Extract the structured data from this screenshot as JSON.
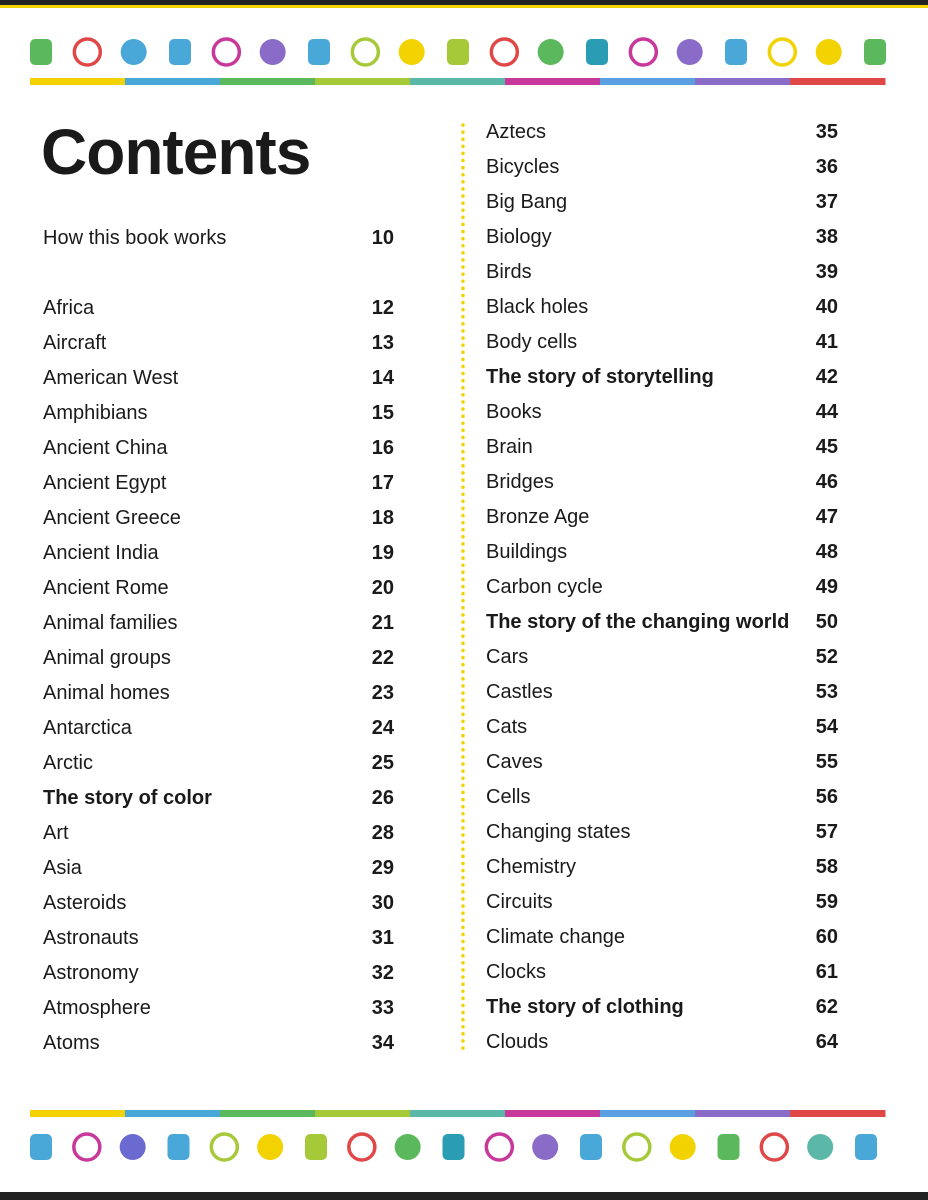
{
  "title": "Contents",
  "intro": {
    "text": "How this book works",
    "page": 10
  },
  "left": [
    {
      "text": "Africa",
      "page": 12
    },
    {
      "text": "Aircraft",
      "page": 13
    },
    {
      "text": "American West",
      "page": 14
    },
    {
      "text": "Amphibians",
      "page": 15
    },
    {
      "text": "Ancient China",
      "page": 16
    },
    {
      "text": "Ancient Egypt",
      "page": 17
    },
    {
      "text": "Ancient Greece",
      "page": 18
    },
    {
      "text": "Ancient India",
      "page": 19
    },
    {
      "text": "Ancient Rome",
      "page": 20
    },
    {
      "text": "Animal families",
      "page": 21
    },
    {
      "text": "Animal groups",
      "page": 22
    },
    {
      "text": "Animal homes",
      "page": 23
    },
    {
      "text": "Antarctica",
      "page": 24
    },
    {
      "text": "Arctic",
      "page": 25
    },
    {
      "text": "The story of color",
      "page": 26,
      "bold": true
    },
    {
      "text": "Art",
      "page": 28
    },
    {
      "text": "Asia",
      "page": 29
    },
    {
      "text": "Asteroids",
      "page": 30
    },
    {
      "text": "Astronauts",
      "page": 31
    },
    {
      "text": "Astronomy",
      "page": 32
    },
    {
      "text": "Atmosphere",
      "page": 33
    },
    {
      "text": "Atoms",
      "page": 34
    }
  ],
  "right": [
    {
      "text": "Aztecs",
      "page": 35
    },
    {
      "text": "Bicycles",
      "page": 36
    },
    {
      "text": "Big Bang",
      "page": 37
    },
    {
      "text": "Biology",
      "page": 38
    },
    {
      "text": "Birds",
      "page": 39
    },
    {
      "text": "Black holes",
      "page": 40
    },
    {
      "text": "Body cells",
      "page": 41
    },
    {
      "text": "The story of storytelling",
      "page": 42,
      "bold": true
    },
    {
      "text": "Books",
      "page": 44
    },
    {
      "text": "Brain",
      "page": 45
    },
    {
      "text": "Bridges",
      "page": 46
    },
    {
      "text": "Bronze Age",
      "page": 47
    },
    {
      "text": "Buildings",
      "page": 48
    },
    {
      "text": "Carbon cycle",
      "page": 49
    },
    {
      "text": "The story of the changing world",
      "page": 50,
      "bold": true
    },
    {
      "text": "Cars",
      "page": 52
    },
    {
      "text": "Castles",
      "page": 53
    },
    {
      "text": "Cats",
      "page": 54
    },
    {
      "text": "Caves",
      "page": 55
    },
    {
      "text": "Cells",
      "page": 56
    },
    {
      "text": "Changing states",
      "page": 57
    },
    {
      "text": "Chemistry",
      "page": 58
    },
    {
      "text": "Circuits",
      "page": 59
    },
    {
      "text": "Climate change",
      "page": 60
    },
    {
      "text": "Clocks",
      "page": 61
    },
    {
      "text": "The story of clothing",
      "page": 62,
      "bold": true
    },
    {
      "text": "Clouds",
      "page": 64
    }
  ]
}
